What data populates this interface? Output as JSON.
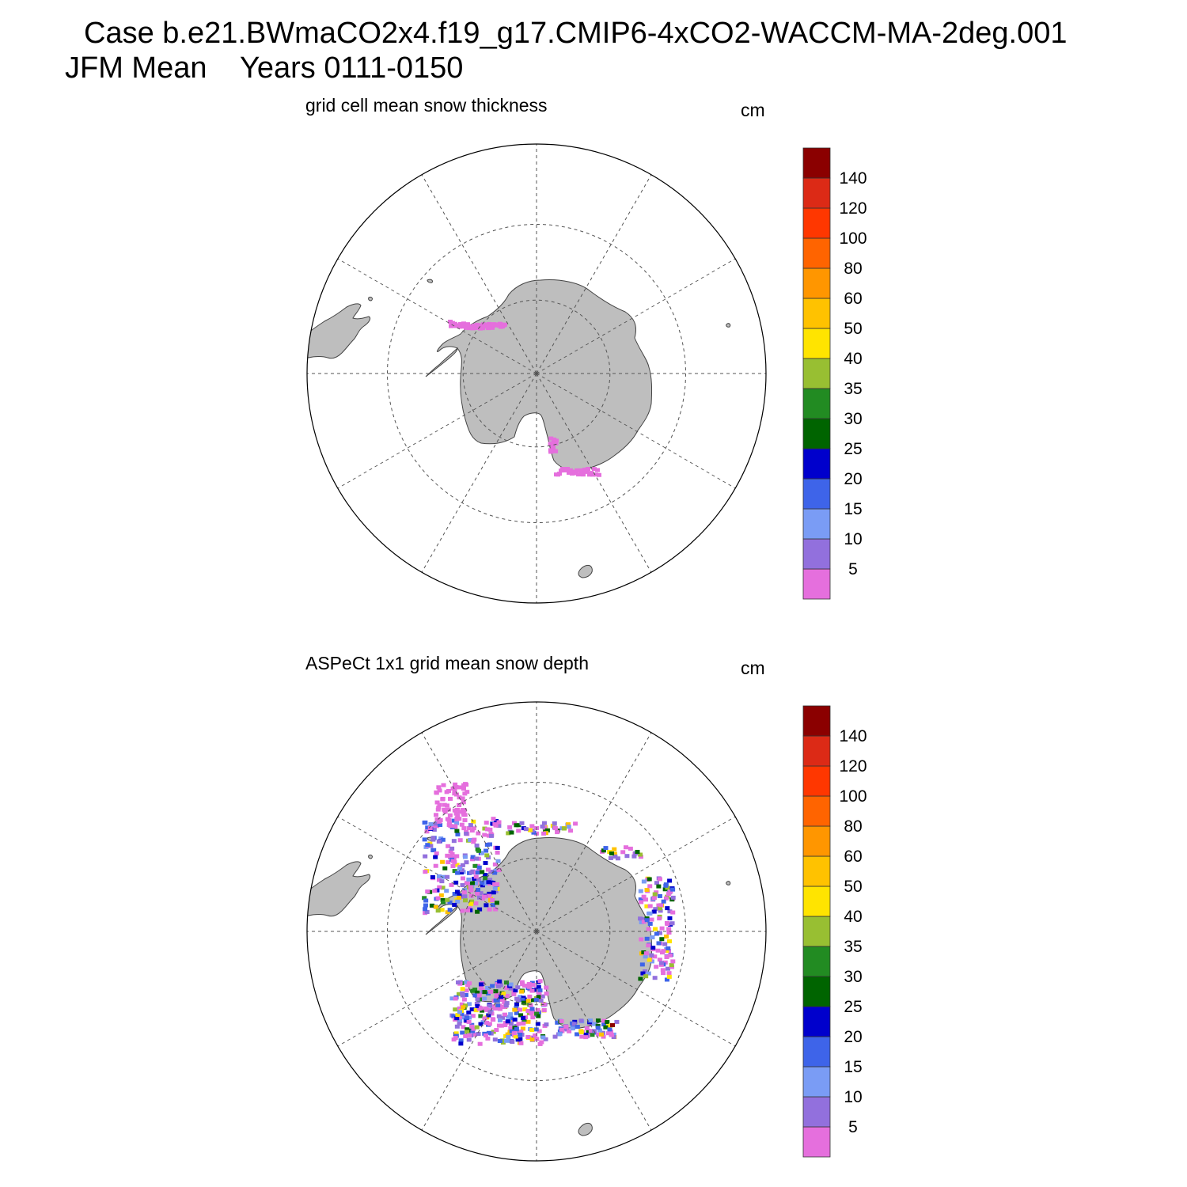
{
  "header": {
    "line1": "Case b.e21.BWmaCO2x4.f19_g17.CMIP6-4xCO2-WACCM-MA-2deg.001",
    "line2": "JFM Mean    Years 0111-0150"
  },
  "panels": [
    {
      "title": "grid cell mean snow thickness",
      "units": "cm"
    },
    {
      "title": "ASPeCt 1x1 grid mean snow depth",
      "units": "cm"
    }
  ],
  "colorbar": {
    "labels": [
      "5",
      "10",
      "15",
      "20",
      "25",
      "30",
      "35",
      "40",
      "50",
      "60",
      "80",
      "100",
      "120",
      "140"
    ],
    "colors": [
      "#e56fdd",
      "#9270dd",
      "#7a9cf5",
      "#3e64e9",
      "#0000cc",
      "#006400",
      "#228b22",
      "#98bf32",
      "#ffe400",
      "#ffc200",
      "#ff9600",
      "#ff6400",
      "#ff3700",
      "#dc2a16",
      "#8b0000"
    ]
  },
  "colors": {
    "land": "#bebebe",
    "coast": "#444444",
    "grid": "#555555"
  }
}
